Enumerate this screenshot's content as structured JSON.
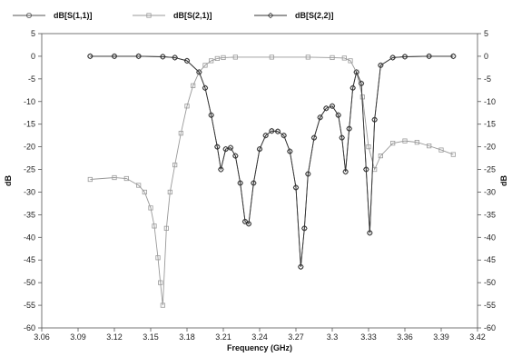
{
  "chart_data": {
    "type": "line",
    "title": "",
    "xlabel": "Frequency (GHz)",
    "ylabel": "dB",
    "y2label": "dB",
    "xlim": [
      3.06,
      3.42
    ],
    "ylim": [
      -60,
      5
    ],
    "x_ticks": [
      "3.06",
      "3.09",
      "3.12",
      "3.15",
      "3.18",
      "3.21",
      "3.24",
      "3.27",
      "3.3",
      "3.33",
      "3.36",
      "3.39",
      "3.42"
    ],
    "y_ticks": [
      5,
      0,
      -5,
      -10,
      -15,
      -20,
      -25,
      -30,
      -35,
      -40,
      -45,
      -50,
      -55,
      -60
    ],
    "grid": false,
    "legend_position": "top",
    "series": [
      {
        "name": "dB[S(1,1)]",
        "marker": "circle",
        "color": "#555555",
        "x": [
          3.1,
          3.12,
          3.14,
          3.16,
          3.17,
          3.18,
          3.19,
          3.195,
          3.2,
          3.205,
          3.208,
          3.212,
          3.216,
          3.22,
          3.224,
          3.228,
          3.231,
          3.235,
          3.24,
          3.245,
          3.25,
          3.255,
          3.26,
          3.265,
          3.27,
          3.274,
          3.277,
          3.28,
          3.285,
          3.29,
          3.295,
          3.3,
          3.305,
          3.308,
          3.311,
          3.314,
          3.317,
          3.32,
          3.324,
          3.328,
          3.331,
          3.335,
          3.34,
          3.35,
          3.36,
          3.38,
          3.4
        ],
        "y": [
          0,
          0,
          0,
          -0.1,
          -0.3,
          -1,
          -3.5,
          -7,
          -13,
          -20,
          -25,
          -20.5,
          -20.2,
          -22,
          -28,
          -36.5,
          -37,
          -28,
          -20.5,
          -17.5,
          -16.5,
          -16.6,
          -17.5,
          -21,
          -29,
          -46.5,
          -38,
          -26,
          -18,
          -13.5,
          -11.5,
          -11,
          -13,
          -18,
          -25.5,
          -16,
          -7,
          -3.5,
          -6,
          -25,
          -39,
          -14,
          -2,
          -0.3,
          -0.1,
          0,
          0
        ]
      },
      {
        "name": "dB[S(2,1)]",
        "marker": "square",
        "color": "#999999",
        "x": [
          3.1,
          3.12,
          3.13,
          3.14,
          3.145,
          3.15,
          3.153,
          3.156,
          3.158,
          3.16,
          3.163,
          3.166,
          3.17,
          3.175,
          3.18,
          3.185,
          3.19,
          3.195,
          3.2,
          3.205,
          3.21,
          3.22,
          3.25,
          3.28,
          3.3,
          3.31,
          3.315,
          3.32,
          3.325,
          3.33,
          3.335,
          3.34,
          3.35,
          3.36,
          3.37,
          3.38,
          3.39,
          3.4
        ],
        "y": [
          -27.2,
          -26.8,
          -27,
          -28.5,
          -30,
          -33.5,
          -37.5,
          -44.5,
          -50,
          -55,
          -38,
          -30,
          -24,
          -17,
          -11,
          -6.5,
          -3.5,
          -2,
          -1,
          -0.5,
          -0.3,
          -0.2,
          -0.2,
          -0.2,
          -0.3,
          -0.4,
          -1,
          -3.5,
          -9,
          -20,
          -25,
          -22,
          -19.2,
          -18.7,
          -19,
          -19.8,
          -20.7,
          -21.7
        ]
      },
      {
        "name": "dB[S(2,2)]",
        "marker": "diamond",
        "color": "#333333",
        "x": [
          3.1,
          3.12,
          3.14,
          3.16,
          3.17,
          3.18,
          3.19,
          3.195,
          3.2,
          3.205,
          3.208,
          3.212,
          3.216,
          3.22,
          3.224,
          3.228,
          3.231,
          3.235,
          3.24,
          3.245,
          3.25,
          3.255,
          3.26,
          3.265,
          3.27,
          3.274,
          3.277,
          3.28,
          3.285,
          3.29,
          3.295,
          3.3,
          3.305,
          3.308,
          3.311,
          3.314,
          3.317,
          3.32,
          3.324,
          3.328,
          3.331,
          3.335,
          3.34,
          3.35,
          3.36,
          3.38,
          3.4
        ],
        "y": [
          0,
          0,
          0,
          -0.1,
          -0.3,
          -1,
          -3.5,
          -7,
          -13,
          -20,
          -25,
          -20.5,
          -20.2,
          -22,
          -28,
          -36.5,
          -37,
          -28,
          -20.5,
          -17.5,
          -16.5,
          -16.6,
          -17.5,
          -21,
          -29,
          -46.5,
          -38,
          -26,
          -18,
          -13.5,
          -11.5,
          -11,
          -13,
          -18,
          -25.5,
          -16,
          -7,
          -3.5,
          -6,
          -25,
          -39,
          -14,
          -2,
          -0.3,
          -0.1,
          0,
          0
        ]
      }
    ]
  }
}
